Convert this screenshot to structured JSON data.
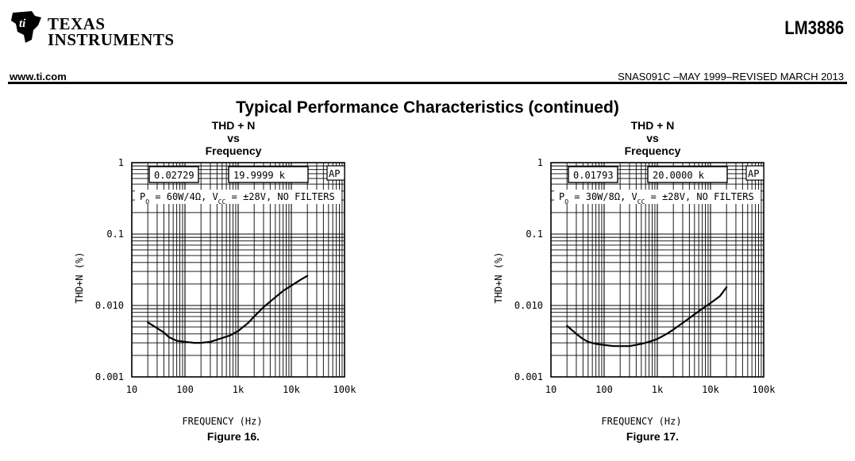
{
  "header": {
    "company_line1": "TEXAS",
    "company_line2": "INSTRUMENTS",
    "part_number": "LM3886",
    "website": "www.ti.com",
    "doc_id": "SNAS091C –MAY 1999–REVISED MARCH 2013"
  },
  "section_title": "Typical Performance Characteristics (continued)",
  "chart_data": [
    {
      "type": "line",
      "title_lines": [
        "THD + N",
        "vs",
        "Frequency"
      ],
      "figure_label": "Figure 16.",
      "xlabel": "FREQUENCY (Hz)",
      "ylabel": "THD+N (%)",
      "xscale": "log",
      "yscale": "log",
      "xlim": [
        10,
        100000
      ],
      "ylim": [
        0.001,
        1
      ],
      "x_tick_labels": [
        "10",
        "100",
        "1k",
        "10k",
        "100k"
      ],
      "y_tick_labels": [
        "0.001",
        "0.010",
        "0.1",
        "1"
      ],
      "readout_value": "0.02729",
      "readout_freq": "19.9999 k",
      "badge": "AP",
      "condition": "P<sub>O</sub> = 60W/4Ω, V<sub>CC</sub> = ±28V, NO FILTERS",
      "grid": true,
      "series": [
        {
          "x": [
            20,
            30,
            40,
            50,
            70,
            100,
            150,
            200,
            300,
            500,
            700,
            1000,
            1500,
            2000,
            3000,
            5000,
            7000,
            10000,
            15000,
            20000
          ],
          "y": [
            0.0058,
            0.0048,
            0.0042,
            0.0036,
            0.0032,
            0.0031,
            0.003,
            0.003,
            0.0031,
            0.0035,
            0.0038,
            0.0044,
            0.0056,
            0.007,
            0.0095,
            0.013,
            0.016,
            0.019,
            0.023,
            0.026
          ]
        }
      ]
    },
    {
      "type": "line",
      "title_lines": [
        "THD + N",
        "vs",
        "Frequency"
      ],
      "figure_label": "Figure 17.",
      "xlabel": "FREQUENCY (Hz)",
      "ylabel": "THD+N (%)",
      "xscale": "log",
      "yscale": "log",
      "xlim": [
        10,
        100000
      ],
      "ylim": [
        0.001,
        1
      ],
      "x_tick_labels": [
        "10",
        "100",
        "1k",
        "10k",
        "100k"
      ],
      "y_tick_labels": [
        "0.001",
        "0.010",
        "0.1",
        "1"
      ],
      "readout_value": "0.01793",
      "readout_freq": "20.0000 k",
      "badge": "AP",
      "condition": "P<sub>O</sub> = 30W/8Ω, V<sub>CC</sub> = ±28V, NO FILTERS",
      "grid": true,
      "series": [
        {
          "x": [
            20,
            30,
            40,
            50,
            70,
            100,
            150,
            200,
            300,
            500,
            700,
            1000,
            1500,
            2000,
            3000,
            5000,
            7000,
            10000,
            15000,
            20000
          ],
          "y": [
            0.0052,
            0.004,
            0.0034,
            0.0031,
            0.0029,
            0.0028,
            0.0027,
            0.0027,
            0.0027,
            0.0029,
            0.0031,
            0.0034,
            0.004,
            0.0046,
            0.0057,
            0.0075,
            0.009,
            0.0108,
            0.0135,
            0.018
          ]
        }
      ]
    }
  ]
}
